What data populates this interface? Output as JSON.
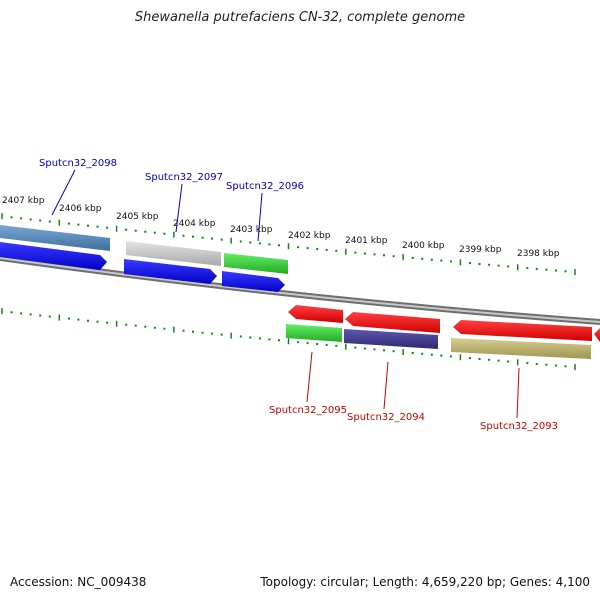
{
  "title": "Shewanella putrefaciens CN-32, complete genome",
  "footer": {
    "accession": "Accession: NC_009438",
    "summary": "Topology: circular; Length: 4,659,220 bp; Genes: 4,100"
  },
  "colors": {
    "forward_label": "#0000cc",
    "reverse_label": "#cc0000",
    "tick": "#118811",
    "backbone": "#808080",
    "blue": "#1010e0",
    "steel": "#4d7fb0",
    "gray": "#b8b8b8",
    "green": "#33cc33",
    "red": "#ee0000",
    "navy": "#403a90",
    "olive": "#b8ad6a"
  },
  "scale_labels": [
    "2407 kbp",
    "2406 kbp",
    "2405 kbp",
    "2404 kbp",
    "2403 kbp",
    "2402 kbp",
    "2401 kbp",
    "2400 kbp",
    "2399 kbp",
    "2398 kbp"
  ],
  "genes_forward": [
    {
      "label": "Sputcn32_2098"
    },
    {
      "label": "Sputcn32_2097"
    },
    {
      "label": "Sputcn32_2096"
    }
  ],
  "genes_reverse": [
    {
      "label": "Sputcn32_2095"
    },
    {
      "label": "Sputcn32_2094"
    },
    {
      "label": "Sputcn32_2093"
    }
  ]
}
